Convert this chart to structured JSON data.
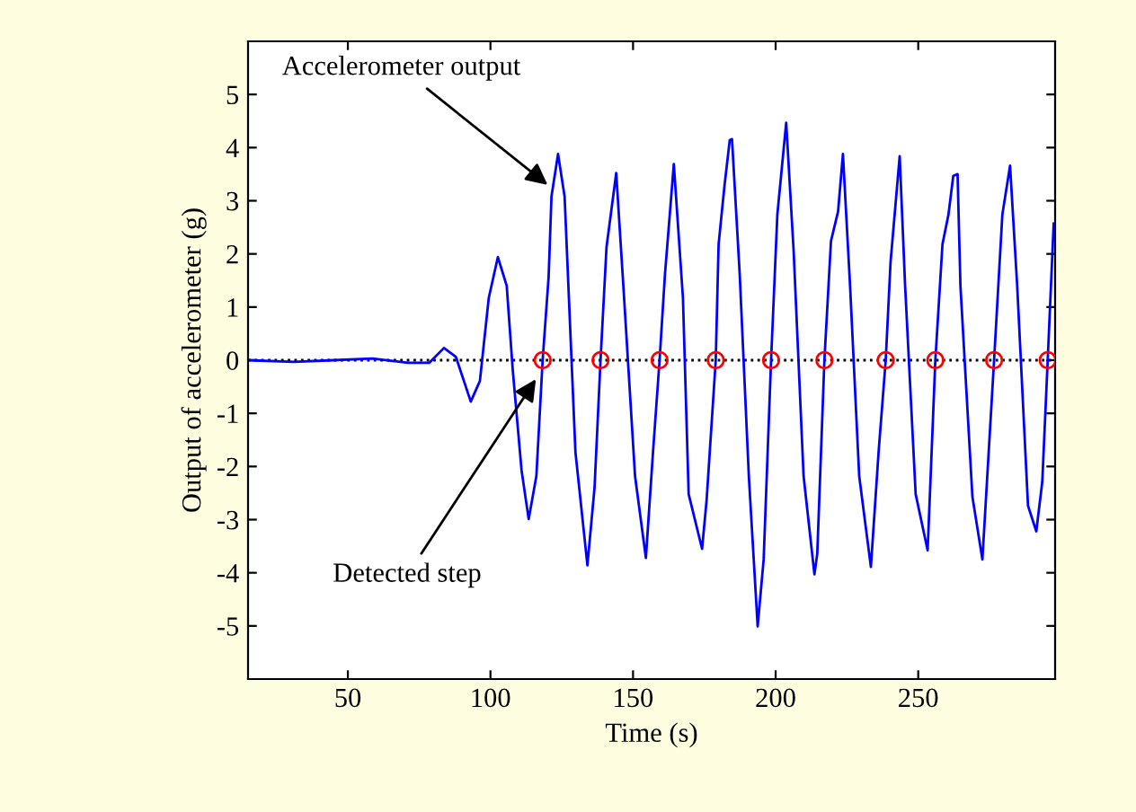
{
  "chart_data": {
    "type": "line",
    "xlabel": "Time (s)",
    "ylabel": "Output of accelerometer (g)",
    "xlim": [
      15,
      298
    ],
    "ylim": [
      -6,
      6
    ],
    "xticks": [
      50,
      100,
      150,
      200,
      250
    ],
    "yticks": [
      -5,
      -4,
      -3,
      -2,
      -1,
      0,
      1,
      2,
      3,
      4,
      5
    ],
    "grid": false,
    "legend": false,
    "series": [
      {
        "color": "#0000ff",
        "marker": "none",
        "line_style": "solid",
        "x": [
          15,
          31,
          45,
          58.6,
          71,
          78.5,
          83.7,
          87.9,
          93.1,
          96.3,
          99.4,
          102.6,
          105.7,
          107.8,
          110.9,
          113.4,
          116.1,
          118.3,
          120.4,
          121.4,
          123.7,
          126,
          129.8,
          134,
          136.5,
          138.6,
          140.7,
          144.1,
          146.6,
          150.7,
          154.5,
          157,
          159.3,
          161.2,
          164.3,
          167.5,
          169.5,
          174.2,
          175.8,
          179,
          180,
          182.1,
          183.9,
          184.7,
          187.4,
          190.6,
          193.7,
          195.8,
          198.4,
          200.6,
          203.7,
          206.3,
          209.8,
          213.6,
          214.6,
          217.1,
          219.4,
          221.9,
          223.6,
          226.1,
          229.3,
          233.4,
          236.1,
          238.6,
          240.3,
          243.5,
          245.4,
          249.1,
          253.3,
          256,
          258.5,
          260.6,
          262.3,
          263.8,
          264.8,
          269,
          272.5,
          276.6,
          279.5,
          282.2,
          284.7,
          288.5,
          291.4,
          293.5,
          295.4,
          297.5
        ],
        "values": [
          0,
          -0.03,
          0,
          0.03,
          -0.05,
          -0.05,
          0.23,
          0.06,
          -0.78,
          -0.39,
          1.17,
          1.94,
          1.4,
          -0.17,
          -2.07,
          -2.99,
          -2.18,
          0,
          1.57,
          3.08,
          3.88,
          3.08,
          -1.73,
          -3.86,
          -2.4,
          0,
          2.13,
          3.52,
          1.4,
          -2.18,
          -3.72,
          -1.73,
          0,
          1.62,
          3.69,
          1.17,
          -2.52,
          -3.55,
          -2.63,
          0,
          2.18,
          3.3,
          4.14,
          4.16,
          1.62,
          -2.18,
          -5.01,
          -3.75,
          0,
          2.74,
          4.47,
          2.07,
          -2.18,
          -4.03,
          -3.64,
          0,
          2.24,
          2.8,
          3.88,
          1.4,
          -2.18,
          -3.89,
          -1.73,
          0,
          1.85,
          3.84,
          1.4,
          -2.52,
          -3.58,
          0,
          2.18,
          2.74,
          3.47,
          3.5,
          1.4,
          -2.57,
          -3.75,
          0,
          2.74,
          3.66,
          1.4,
          -2.74,
          -3.22,
          -2.29,
          0,
          2.57
        ]
      },
      {
        "type": "scatter",
        "color": "#ff0000",
        "marker": "circle",
        "x": [
          118.3,
          138.6,
          159.3,
          179.0,
          198.4,
          217.1,
          238.6,
          256.0,
          276.6,
          295.4
        ],
        "values": [
          0,
          0,
          0,
          0,
          0,
          0,
          0,
          0,
          0,
          0
        ]
      }
    ],
    "ref_lines": [
      {
        "axis": "y",
        "value": 0,
        "color": "#000000",
        "line_style": "dotted"
      }
    ],
    "annotations": [
      {
        "text": "Accelerometer output",
        "x": 121.4,
        "y": 3.24
      },
      {
        "text": "Detected step",
        "x": 116.9,
        "y": -0.28
      }
    ]
  }
}
